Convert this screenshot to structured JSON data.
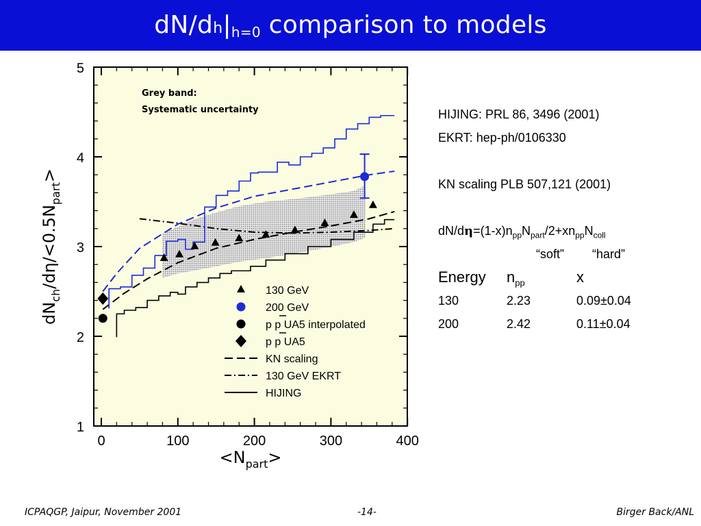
{
  "title": {
    "part1": "dN/d",
    "part2": "h",
    "part3": "|",
    "sub": "h=0",
    "part4": " comparison to models"
  },
  "colors": {
    "title_bg": "#0a0fd6",
    "plot_bg": "#fcfce0",
    "band": "#b8b8b8",
    "blue": "#1a2bd8"
  },
  "chart_data": {
    "type": "scatter",
    "xlabel_main": "<N",
    "xlabel_sub": "part",
    "xlabel_end": ">",
    "ylabel_parts": [
      "dN",
      "ch",
      "/dη/<0.5N",
      "part",
      ">"
    ],
    "xlim": [
      -10,
      400
    ],
    "ylim": [
      1,
      5
    ],
    "xticks": [
      "0",
      "100",
      "200",
      "300",
      "400"
    ],
    "yticks": [
      "1",
      "2",
      "3",
      "4",
      "5"
    ],
    "annotation_line1": "Grey band:",
    "annotation_line2": "Systematic uncertainty",
    "band": {
      "x": [
        80,
        100,
        120,
        150,
        180,
        215,
        250,
        290,
        330,
        345
      ],
      "lower": [
        2.65,
        2.7,
        2.73,
        2.78,
        2.83,
        2.87,
        2.92,
        2.98,
        3.05,
        3.1
      ],
      "upper": [
        3.15,
        3.22,
        3.3,
        3.38,
        3.45,
        3.5,
        3.53,
        3.57,
        3.62,
        3.68
      ]
    },
    "series": [
      {
        "name": "130 GeV",
        "marker": "triangle",
        "color": "#000000",
        "x": [
          82,
          102,
          122,
          149,
          180,
          215,
          253,
          292,
          330,
          355
        ],
        "y": [
          2.87,
          2.91,
          3.0,
          3.04,
          3.09,
          3.13,
          3.18,
          3.26,
          3.35,
          3.46
        ]
      },
      {
        "name": "200 GeV",
        "marker": "circle",
        "color": "#1a2bd8",
        "x": [
          344
        ],
        "y": [
          3.78
        ],
        "err_low": [
          0.24
        ],
        "err_high": [
          0.25
        ]
      },
      {
        "name": "p  p UA5 interpolated",
        "marker": "circle",
        "color": "#000000",
        "x": [
          2
        ],
        "y": [
          2.2
        ]
      },
      {
        "name": "p  p UA5",
        "marker": "diamond",
        "color": "#000000",
        "x": [
          2
        ],
        "y": [
          2.42
        ]
      },
      {
        "name": "KN scaling",
        "style": "dashed",
        "color": "#000000",
        "x": [
          2,
          30,
          60,
          100,
          150,
          200,
          250,
          300,
          350,
          383
        ],
        "y": [
          2.3,
          2.48,
          2.64,
          2.82,
          2.98,
          3.08,
          3.16,
          3.23,
          3.31,
          3.39
        ]
      },
      {
        "name": "130 GeV EKRT",
        "style": "dashdot",
        "color": "#000000",
        "x": [
          50,
          100,
          150,
          200,
          250,
          300,
          350,
          383
        ],
        "y": [
          3.31,
          3.26,
          3.2,
          3.16,
          3.15,
          3.16,
          3.18,
          3.2
        ]
      },
      {
        "name": "HIJING",
        "style": "solid",
        "color": "#000000",
        "steps": [
          [
            20,
            1.99
          ],
          [
            30,
            2.25
          ],
          [
            45,
            2.29
          ],
          [
            60,
            2.32
          ],
          [
            75,
            2.4
          ],
          [
            90,
            2.45
          ],
          [
            100,
            2.49
          ],
          [
            110,
            2.47
          ],
          [
            125,
            2.55
          ],
          [
            140,
            2.6
          ],
          [
            155,
            2.65
          ],
          [
            170,
            2.7
          ],
          [
            195,
            2.73
          ],
          [
            215,
            2.78
          ],
          [
            240,
            2.85
          ],
          [
            270,
            2.92
          ],
          [
            300,
            3.0
          ],
          [
            330,
            3.08
          ],
          [
            355,
            3.16
          ],
          [
            370,
            3.25
          ],
          [
            383,
            3.3
          ]
        ]
      },
      {
        "name": "HIJING 200 GeV",
        "style": "solid",
        "color": "#1a2bd8",
        "steps": [
          [
            10,
            2.31
          ],
          [
            25,
            2.53
          ],
          [
            40,
            2.55
          ],
          [
            55,
            2.68
          ],
          [
            70,
            2.76
          ],
          [
            85,
            2.9
          ],
          [
            100,
            3.06
          ],
          [
            110,
            3.08
          ],
          [
            120,
            2.97
          ],
          [
            135,
            3.05
          ],
          [
            150,
            3.44
          ],
          [
            165,
            3.57
          ],
          [
            180,
            3.62
          ],
          [
            195,
            3.73
          ],
          [
            205,
            3.82
          ],
          [
            230,
            3.83
          ],
          [
            245,
            3.94
          ],
          [
            260,
            3.91
          ],
          [
            275,
            4.0
          ],
          [
            290,
            4.04
          ],
          [
            305,
            4.1
          ],
          [
            320,
            4.2
          ],
          [
            335,
            4.31
          ],
          [
            350,
            4.37
          ],
          [
            365,
            4.44
          ],
          [
            383,
            4.46
          ]
        ]
      },
      {
        "name": "KN scaling 200 GeV",
        "style": "dashed",
        "color": "#1a2bd8",
        "x": [
          2,
          20,
          50,
          100,
          150,
          200,
          250,
          300,
          350,
          383
        ],
        "y": [
          2.5,
          2.7,
          2.98,
          3.25,
          3.43,
          3.56,
          3.64,
          3.72,
          3.8,
          3.84
        ]
      }
    ],
    "legend": [
      {
        "label": "130 GeV",
        "kind": "triangle"
      },
      {
        "label": "200 GeV",
        "kind": "circle-blue"
      },
      {
        "label": "p  p UA5 interpolated",
        "kind": "circle",
        "bar": true
      },
      {
        "label": "p  p UA5",
        "kind": "diamond",
        "bar": true
      },
      {
        "label": "KN scaling",
        "kind": "dashed"
      },
      {
        "label": "130 GeV EKRT",
        "kind": "dashdot"
      },
      {
        "label": "HIJING",
        "kind": "solid"
      }
    ]
  },
  "refs": {
    "hijing": "HIJING: PRL 86, 3496 (2001)",
    "ekrt": "EKRT: hep-ph/0106330",
    "kn": "KN scaling PLB 507,121 (2001)",
    "formula": {
      "a": "dN/d",
      "eta": "η",
      "b": "=(1-x)n",
      "s1": "pp",
      "c": "N",
      "s2": "part",
      "d": "/2+xn",
      "s3": "pp",
      "e": "N",
      "s4": "coll"
    },
    "soft": "“soft”",
    "hard": "“hard”",
    "table": {
      "head_energy": "Energy",
      "head_npp_main": "n",
      "head_npp_sub": "pp",
      "head_x": "x",
      "rows": [
        {
          "energy": "130",
          "npp": "2.23",
          "x": "0.09±0.04"
        },
        {
          "energy": "200",
          "npp": "2.42",
          "x": "0.11±0.04"
        }
      ]
    }
  },
  "footer": {
    "left": "ICPAQGP, Jaipur, November 2001",
    "center": "-14-",
    "right": "Birger Back/ANL"
  }
}
